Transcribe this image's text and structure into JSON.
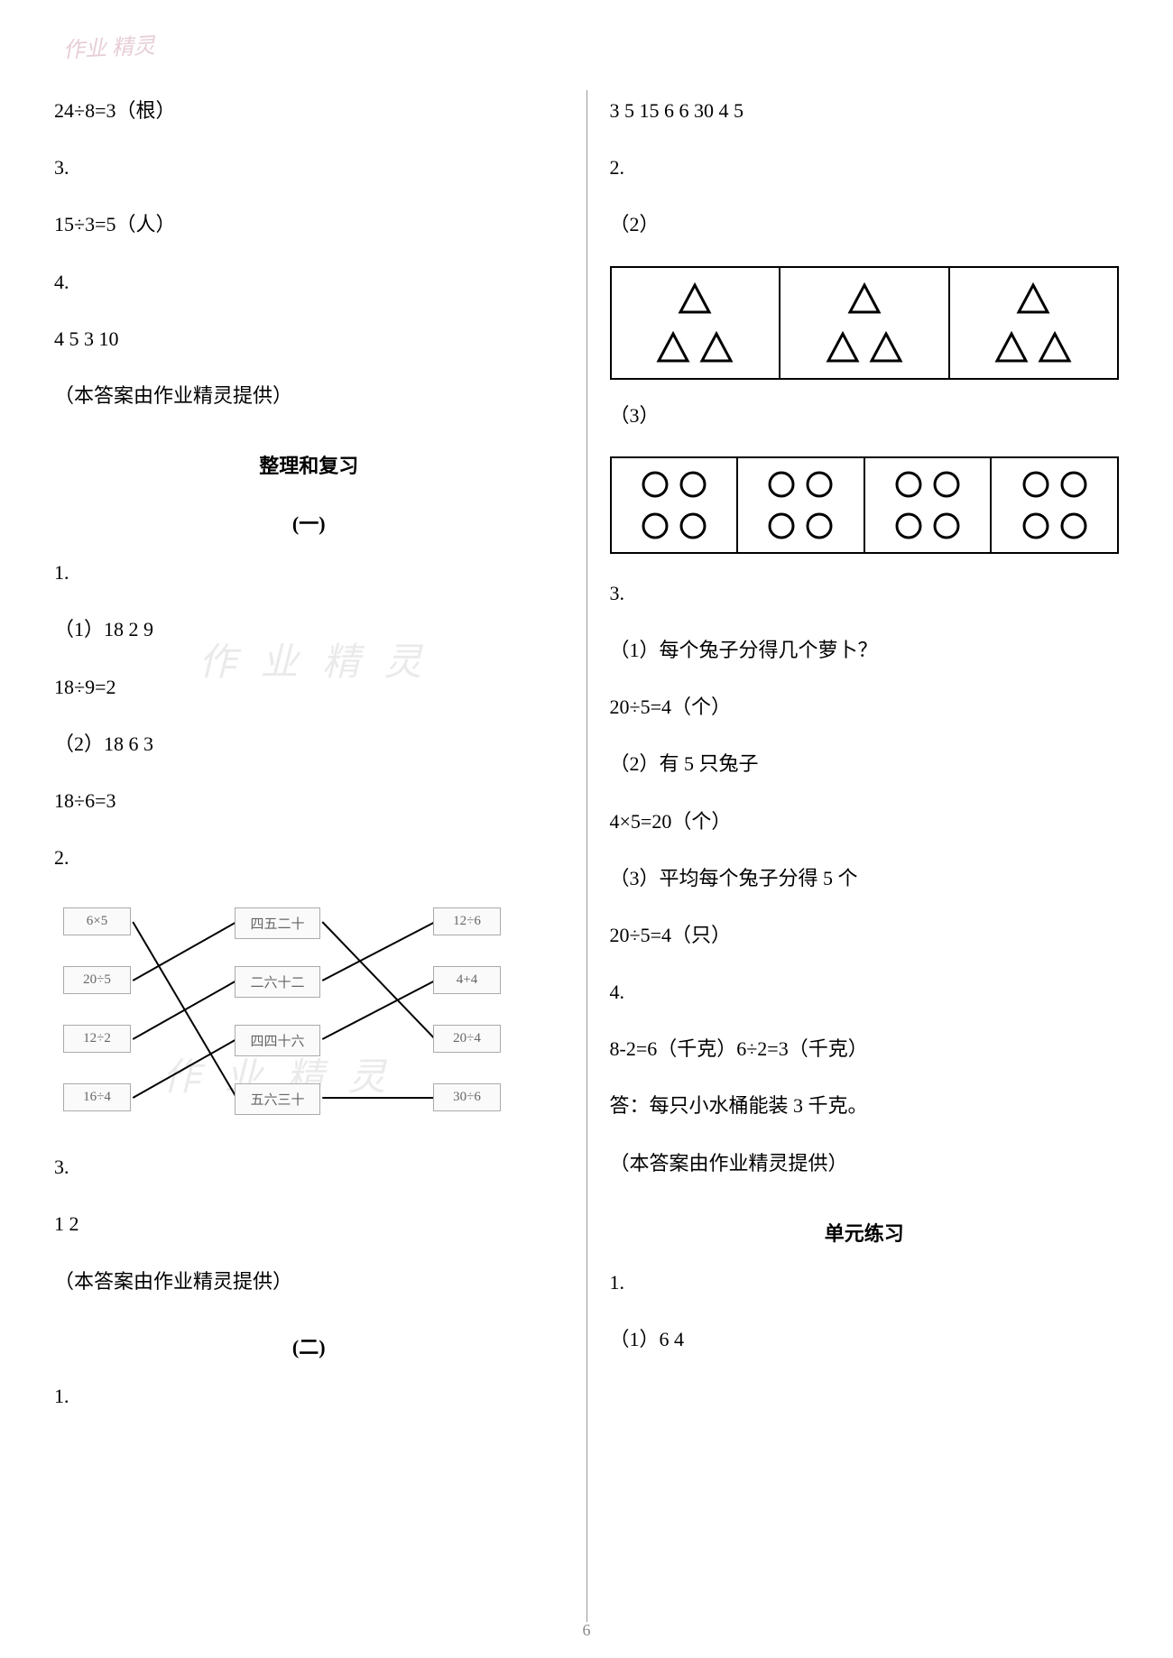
{
  "watermark_corner": "作业\n精灵",
  "watermark_mid": "作 业 精 灵",
  "page_number": "6",
  "left": {
    "l1": "24÷8=3（根）",
    "l2": "3.",
    "l3": "15÷3=5（人）",
    "l4": "4.",
    "l5": "4  5  3  10",
    "l6": "（本答案由作业精灵提供）",
    "h1": "整理和复习",
    "h1s": "(一)",
    "l7": "1.",
    "l8": "（1）18  2  9",
    "l9": "18÷9=2",
    "l10": "（2）18  6  3",
    "l11": "18÷6=3",
    "l12": "2.",
    "match": {
      "left": [
        "6×5",
        "20÷5",
        "12÷2",
        "16÷4"
      ],
      "mid": [
        "四五二十",
        "二六十二",
        "四四十六",
        "五六三十"
      ],
      "right": [
        "12÷6",
        "4+4",
        "20÷4",
        "30÷6"
      ],
      "edges_lm": [
        [
          0,
          3
        ],
        [
          1,
          0
        ],
        [
          2,
          1
        ],
        [
          3,
          2
        ]
      ],
      "edges_mr": [
        [
          0,
          2
        ],
        [
          1,
          0
        ],
        [
          2,
          1
        ],
        [
          3,
          3
        ]
      ],
      "box_border": "#aaaaaa",
      "line_color": "#000000"
    },
    "l13": "3.",
    "l14": "1  2",
    "l15": "（本答案由作业精灵提供）",
    "h2s": "(二)",
    "l16": "1."
  },
  "right": {
    "l1": "3  5  15  6  6  30  4  5",
    "l2": "2.",
    "l3": "（2）",
    "triangles": {
      "cells": 3,
      "per_cell": 3,
      "stroke": "#000000",
      "fill": "#ffffff",
      "stroke_width": 3
    },
    "l4": "（3）",
    "circles": {
      "cells": 4,
      "per_cell": 4,
      "stroke": "#000000",
      "fill": "#ffffff",
      "stroke_width": 3
    },
    "l5": "3.",
    "l6": "（1）每个兔子分得几个萝卜？",
    "l7": "20÷5=4（个）",
    "l8": "（2）有 5 只兔子",
    "l9": "4×5=20（个）",
    "l10": "（3）平均每个兔子分得 5 个",
    "l11": "20÷5=4（只）",
    "l12": "4.",
    "l13": "8-2=6（千克）6÷2=3（千克）",
    "l14": "答：每只小水桶能装 3 千克。",
    "l15": "（本答案由作业精灵提供）",
    "h1": "单元练习",
    "l16": "1.",
    "l17": "（1）6  4"
  }
}
